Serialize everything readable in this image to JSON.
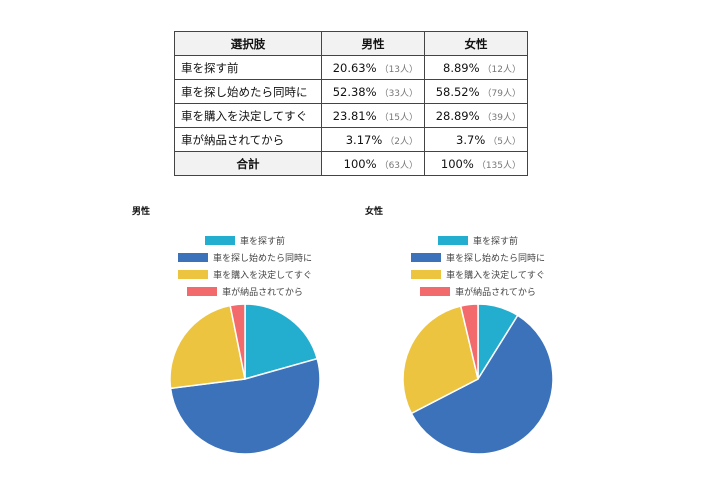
{
  "table": {
    "headers": [
      "選択肢",
      "男性",
      "女性"
    ],
    "rows": [
      {
        "option": "車を探す前",
        "male_pct": "20.63%",
        "male_n": "（13人）",
        "female_pct": "8.89%",
        "female_n": "（12人）"
      },
      {
        "option": "車を探し始めたら同時に",
        "male_pct": "52.38%",
        "male_n": "（33人）",
        "female_pct": "58.52%",
        "female_n": "（79人）"
      },
      {
        "option": "車を購入を決定してすぐ",
        "male_pct": "23.81%",
        "male_n": "（15人）",
        "female_pct": "28.89%",
        "female_n": "（39人）"
      },
      {
        "option": "車が納品されてから",
        "male_pct": "3.17%",
        "male_n": "（2人）",
        "female_pct": "3.7%",
        "female_n": "（5人）"
      }
    ],
    "total": {
      "option": "合計",
      "male_pct": "100%",
      "male_n": "（63人）",
      "female_pct": "100%",
      "female_n": "（135人）"
    }
  },
  "chart_data": [
    {
      "type": "pie",
      "title": "男性",
      "categories": [
        "車を探す前",
        "車を探し始めたら同時に",
        "車を購入を決定してすぐ",
        "車が納品されてから"
      ],
      "values": [
        20.63,
        52.38,
        23.81,
        3.17
      ],
      "colors": [
        "#23aed0",
        "#3b72b9",
        "#ecc440",
        "#f36a6c"
      ],
      "legend_position": "top"
    },
    {
      "type": "pie",
      "title": "女性",
      "categories": [
        "車を探す前",
        "車を探し始めたら同時に",
        "車を購入を決定してすぐ",
        "車が納品されてから"
      ],
      "values": [
        8.89,
        58.52,
        28.89,
        3.7
      ],
      "colors": [
        "#23aed0",
        "#3b72b9",
        "#ecc440",
        "#f36a6c"
      ],
      "legend_position": "top"
    }
  ]
}
